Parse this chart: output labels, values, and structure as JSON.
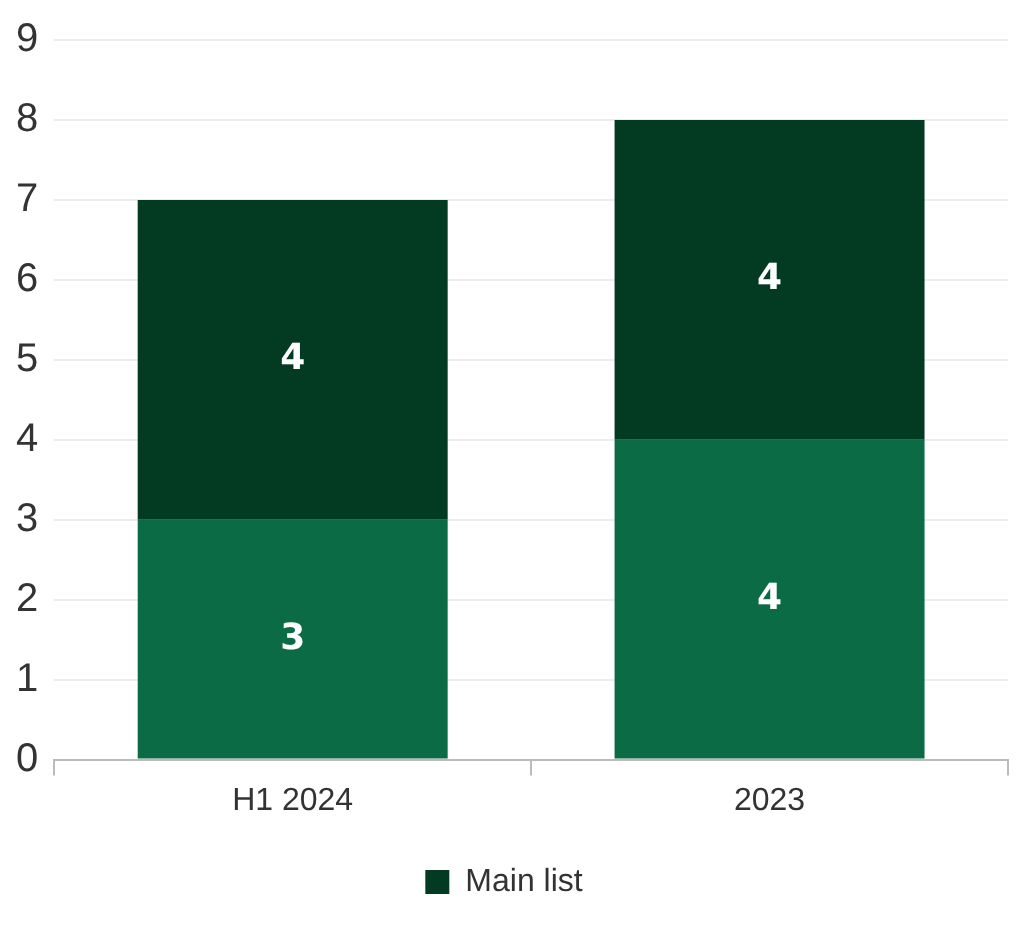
{
  "chart_data": {
    "type": "bar",
    "stacked": true,
    "categories": [
      "H1 2024",
      "2023"
    ],
    "series": [
      {
        "color": "#0a6b45",
        "values": [
          3,
          4
        ]
      },
      {
        "name": "Main list",
        "color": "#033a22",
        "values": [
          4,
          4
        ]
      }
    ],
    "ylim": [
      0,
      9
    ],
    "yticks": [
      0,
      1,
      2,
      3,
      4,
      5,
      6,
      7,
      8,
      9
    ],
    "grid": "y",
    "legend": "bottom",
    "data_labels": true
  }
}
